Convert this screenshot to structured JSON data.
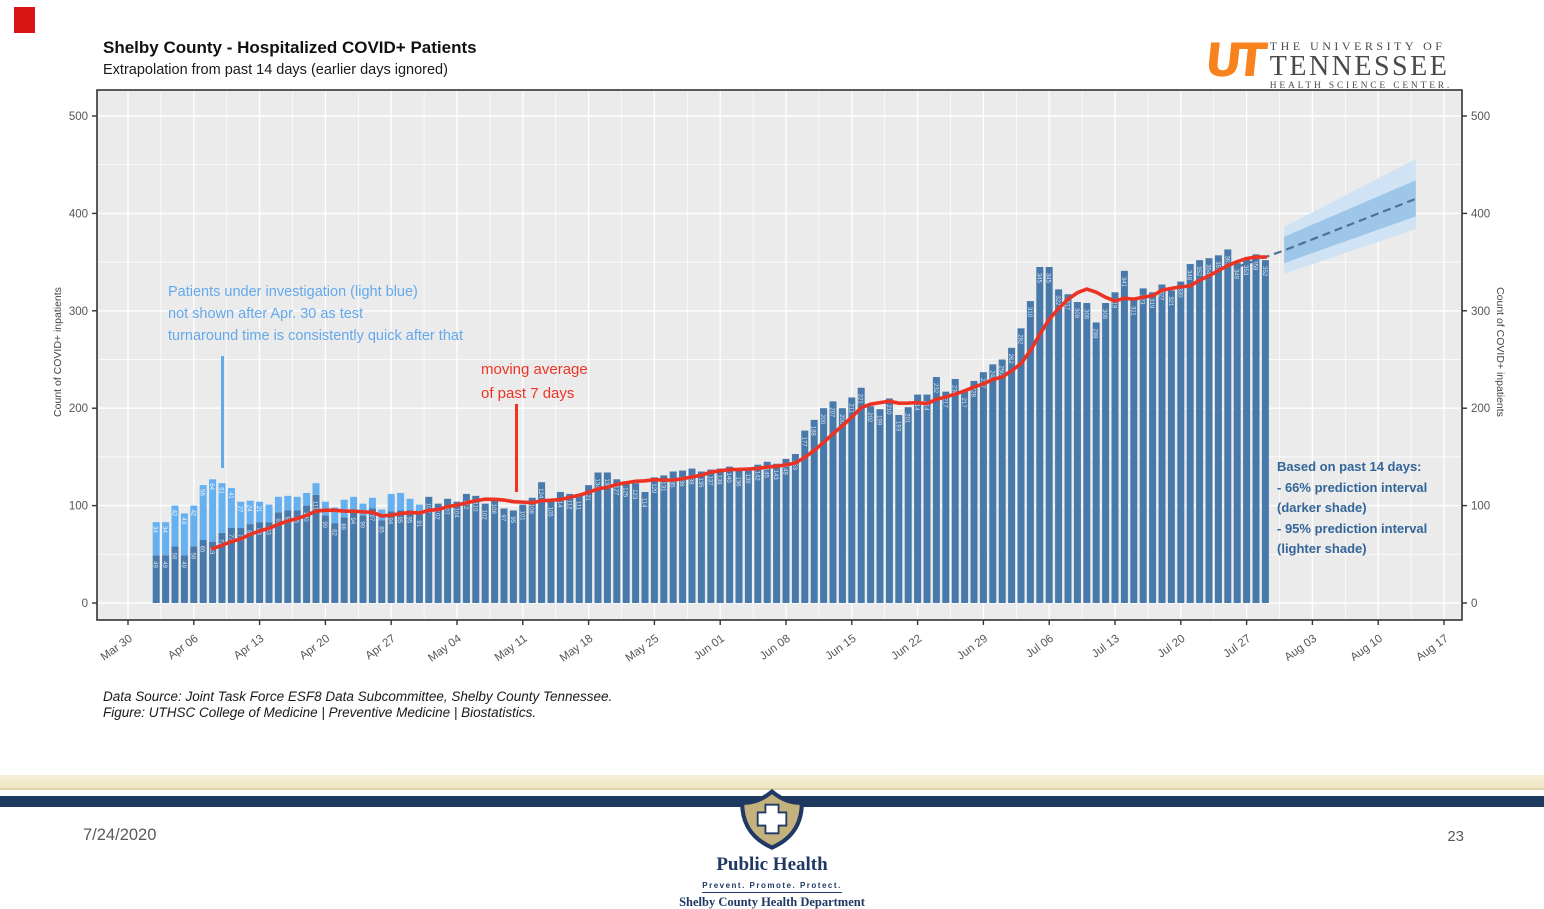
{
  "slide": {
    "date": "7/24/2020",
    "page_number": "23"
  },
  "header": {
    "title": "Shelby County - Hospitalized COVID+ Patients",
    "subtitle": "Extrapolation from past 14 days (earlier days ignored)",
    "logo": {
      "mark": "UT",
      "orange": "#f8821e",
      "line1": "THE UNIVERSITY OF",
      "line2": "TENNESSEE",
      "line3": "HEALTH SCIENCE CENTER."
    }
  },
  "chart_data": {
    "type": "bar",
    "title": "Shelby County - Hospitalized COVID+ Patients",
    "ylabel": "Count of COVID+ inpatients",
    "ylim": [
      0,
      520
    ],
    "yticks": [
      0,
      100,
      200,
      300,
      400,
      500
    ],
    "xticks": [
      "Mar 30",
      "Apr 06",
      "Apr 13",
      "Apr 20",
      "Apr 27",
      "May 04",
      "May 11",
      "May 18",
      "May 25",
      "Jun 01",
      "Jun 08",
      "Jun 15",
      "Jun 22",
      "Jun 29",
      "Jul 06",
      "Jul 13",
      "Jul 20",
      "Jul 27",
      "Aug 03",
      "Aug 10",
      "Aug 17"
    ],
    "grid": true,
    "panel_background": "#ebebeb",
    "start_offset_days": 3,
    "start_date_label": "Apr 02",
    "end_date_label": "Jul 29",
    "series": [
      {
        "name": "COVID+ inpatients",
        "color": "#4879ab",
        "values": [
          49,
          49,
          58,
          49,
          58,
          65,
          63,
          72,
          77,
          77,
          81,
          83,
          83,
          93,
          95,
          95,
          100,
          111,
          90,
          82,
          88,
          94,
          90,
          97,
          85,
          94,
          95,
          95,
          91,
          109,
          102,
          107,
          104,
          112,
          110,
          102,
          108,
          97,
          95,
          101,
          108,
          124,
          105,
          114,
          112,
          111,
          121,
          134,
          134,
          127,
          125,
          123,
          114,
          129,
          131,
          135,
          136,
          138,
          135,
          137,
          138,
          140,
          136,
          139,
          142,
          145,
          143,
          148,
          153,
          177,
          188,
          200,
          207,
          200,
          211,
          221,
          202,
          199,
          210,
          193,
          201,
          214,
          214,
          232,
          217,
          230,
          217,
          228,
          237,
          245,
          250,
          262,
          282,
          310,
          345,
          345,
          322,
          317,
          309,
          308,
          288,
          308,
          319,
          341,
          311,
          323,
          319,
          327,
          321,
          330,
          348,
          352,
          354,
          357,
          363,
          349,
          353,
          358,
          352
        ]
      },
      {
        "name": "Patients under investigation",
        "color": "#66b0f0",
        "values": [
          34,
          34,
          42,
          43,
          42,
          56,
          64,
          51,
          41,
          27,
          24,
          21,
          18,
          16,
          15,
          14,
          13,
          12,
          14,
          16,
          18,
          15,
          12,
          11,
          11,
          18,
          18,
          12,
          10
        ]
      }
    ],
    "moving_average": {
      "name": "moving average of past 7 days",
      "color": "#ec3323",
      "window": 7
    },
    "projection": {
      "line_color": "#4f7196",
      "band66_color": "#9ec6e8",
      "band95_color": "#cfe3f5",
      "dashed_line": [
        [
          118,
          345
        ],
        [
          123,
          362
        ],
        [
          137,
          415
        ]
      ],
      "start_day_offset": 123,
      "end_day_offset": 137,
      "band66_start": [
        349,
        376
      ],
      "band66_end": [
        397,
        434
      ],
      "band95_start": [
        338,
        386
      ],
      "band95_end": [
        384,
        456
      ]
    },
    "annotations": {
      "pui_note": {
        "color": "#63a9ec",
        "line1": "Patients under investigation (light blue)",
        "line2": "not shown after Apr. 30 as test",
        "line3": "turnaround time is consistently quick after that"
      },
      "ma_note": {
        "color": "#ee3524",
        "line1": "moving average",
        "line2": "of past 7 days"
      },
      "prediction_note": {
        "color": "#336598",
        "line1": "Based on past 14 days:",
        "line2": "- 66% prediction interval",
        "line3": "(darker shade)",
        "line4": "- 95% prediction interval",
        "line5": "(lighter shade)"
      }
    }
  },
  "footnote": {
    "line1": "Data Source: Joint Task Force ESF8 Data Subcommittee, Shelby County Tennessee.",
    "line2": "Figure: UTHSC College of Medicine | Preventive Medicine | Biostatistics."
  },
  "footer_logo": {
    "title": "Public Health",
    "tagline": "Prevent.  Promote.  Protect.",
    "department": "Shelby County Health Department"
  }
}
